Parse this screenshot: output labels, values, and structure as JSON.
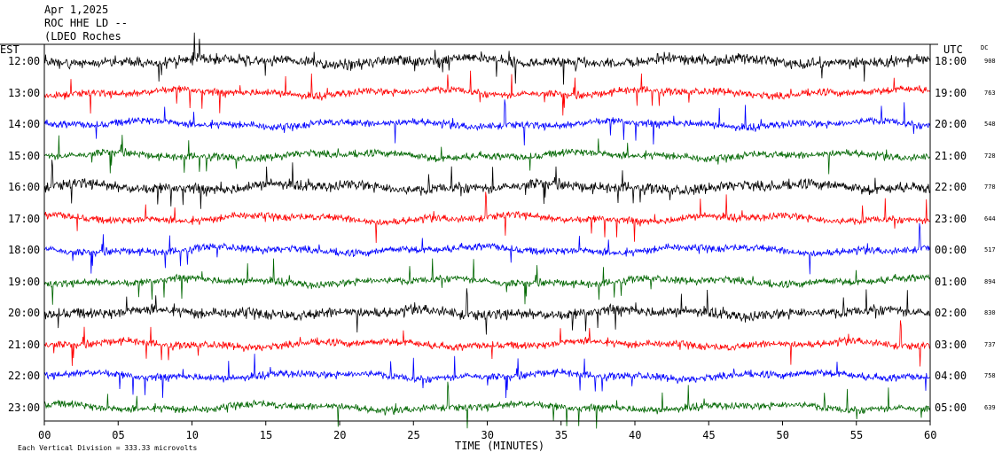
{
  "header": {
    "date": "Apr 1,2025",
    "station": "ROC HHE LD --",
    "location": "(LDEO Roches"
  },
  "chart_data": {
    "type": "helicorder",
    "left_axis_label": "EST",
    "right_axis_label": "UTC",
    "dc_label": "DC",
    "xlabel": "TIME (MINUTES)",
    "x_ticks": [
      "00",
      "05",
      "10",
      "15",
      "20",
      "25",
      "30",
      "35",
      "40",
      "45",
      "50",
      "55",
      "60"
    ],
    "xlim": [
      0,
      60
    ],
    "scale_note": "Each Vertical Division = 333.33 microvolts",
    "trace_colors": [
      "#000000",
      "#ff0000",
      "#0000ff",
      "#006600"
    ],
    "rows": [
      {
        "est": "12:00",
        "utc": "18:00",
        "dc": "908",
        "color": "#000000"
      },
      {
        "est": "13:00",
        "utc": "19:00",
        "dc": "763",
        "color": "#ff0000"
      },
      {
        "est": "14:00",
        "utc": "20:00",
        "dc": "548",
        "color": "#0000ff"
      },
      {
        "est": "15:00",
        "utc": "21:00",
        "dc": "728",
        "color": "#006600"
      },
      {
        "est": "16:00",
        "utc": "22:00",
        "dc": "778",
        "color": "#000000"
      },
      {
        "est": "17:00",
        "utc": "23:00",
        "dc": "644",
        "color": "#ff0000"
      },
      {
        "est": "18:00",
        "utc": "00:00",
        "dc": "517",
        "color": "#0000ff"
      },
      {
        "est": "19:00",
        "utc": "01:00",
        "dc": "894",
        "color": "#006600"
      },
      {
        "est": "20:00",
        "utc": "02:00",
        "dc": "830",
        "color": "#000000"
      },
      {
        "est": "21:00",
        "utc": "03:00",
        "dc": "737",
        "color": "#ff0000"
      },
      {
        "est": "22:00",
        "utc": "04:00",
        "dc": "758",
        "color": "#0000ff"
      },
      {
        "est": "23:00",
        "utc": "05:00",
        "dc": "639",
        "color": "#006600"
      }
    ]
  }
}
